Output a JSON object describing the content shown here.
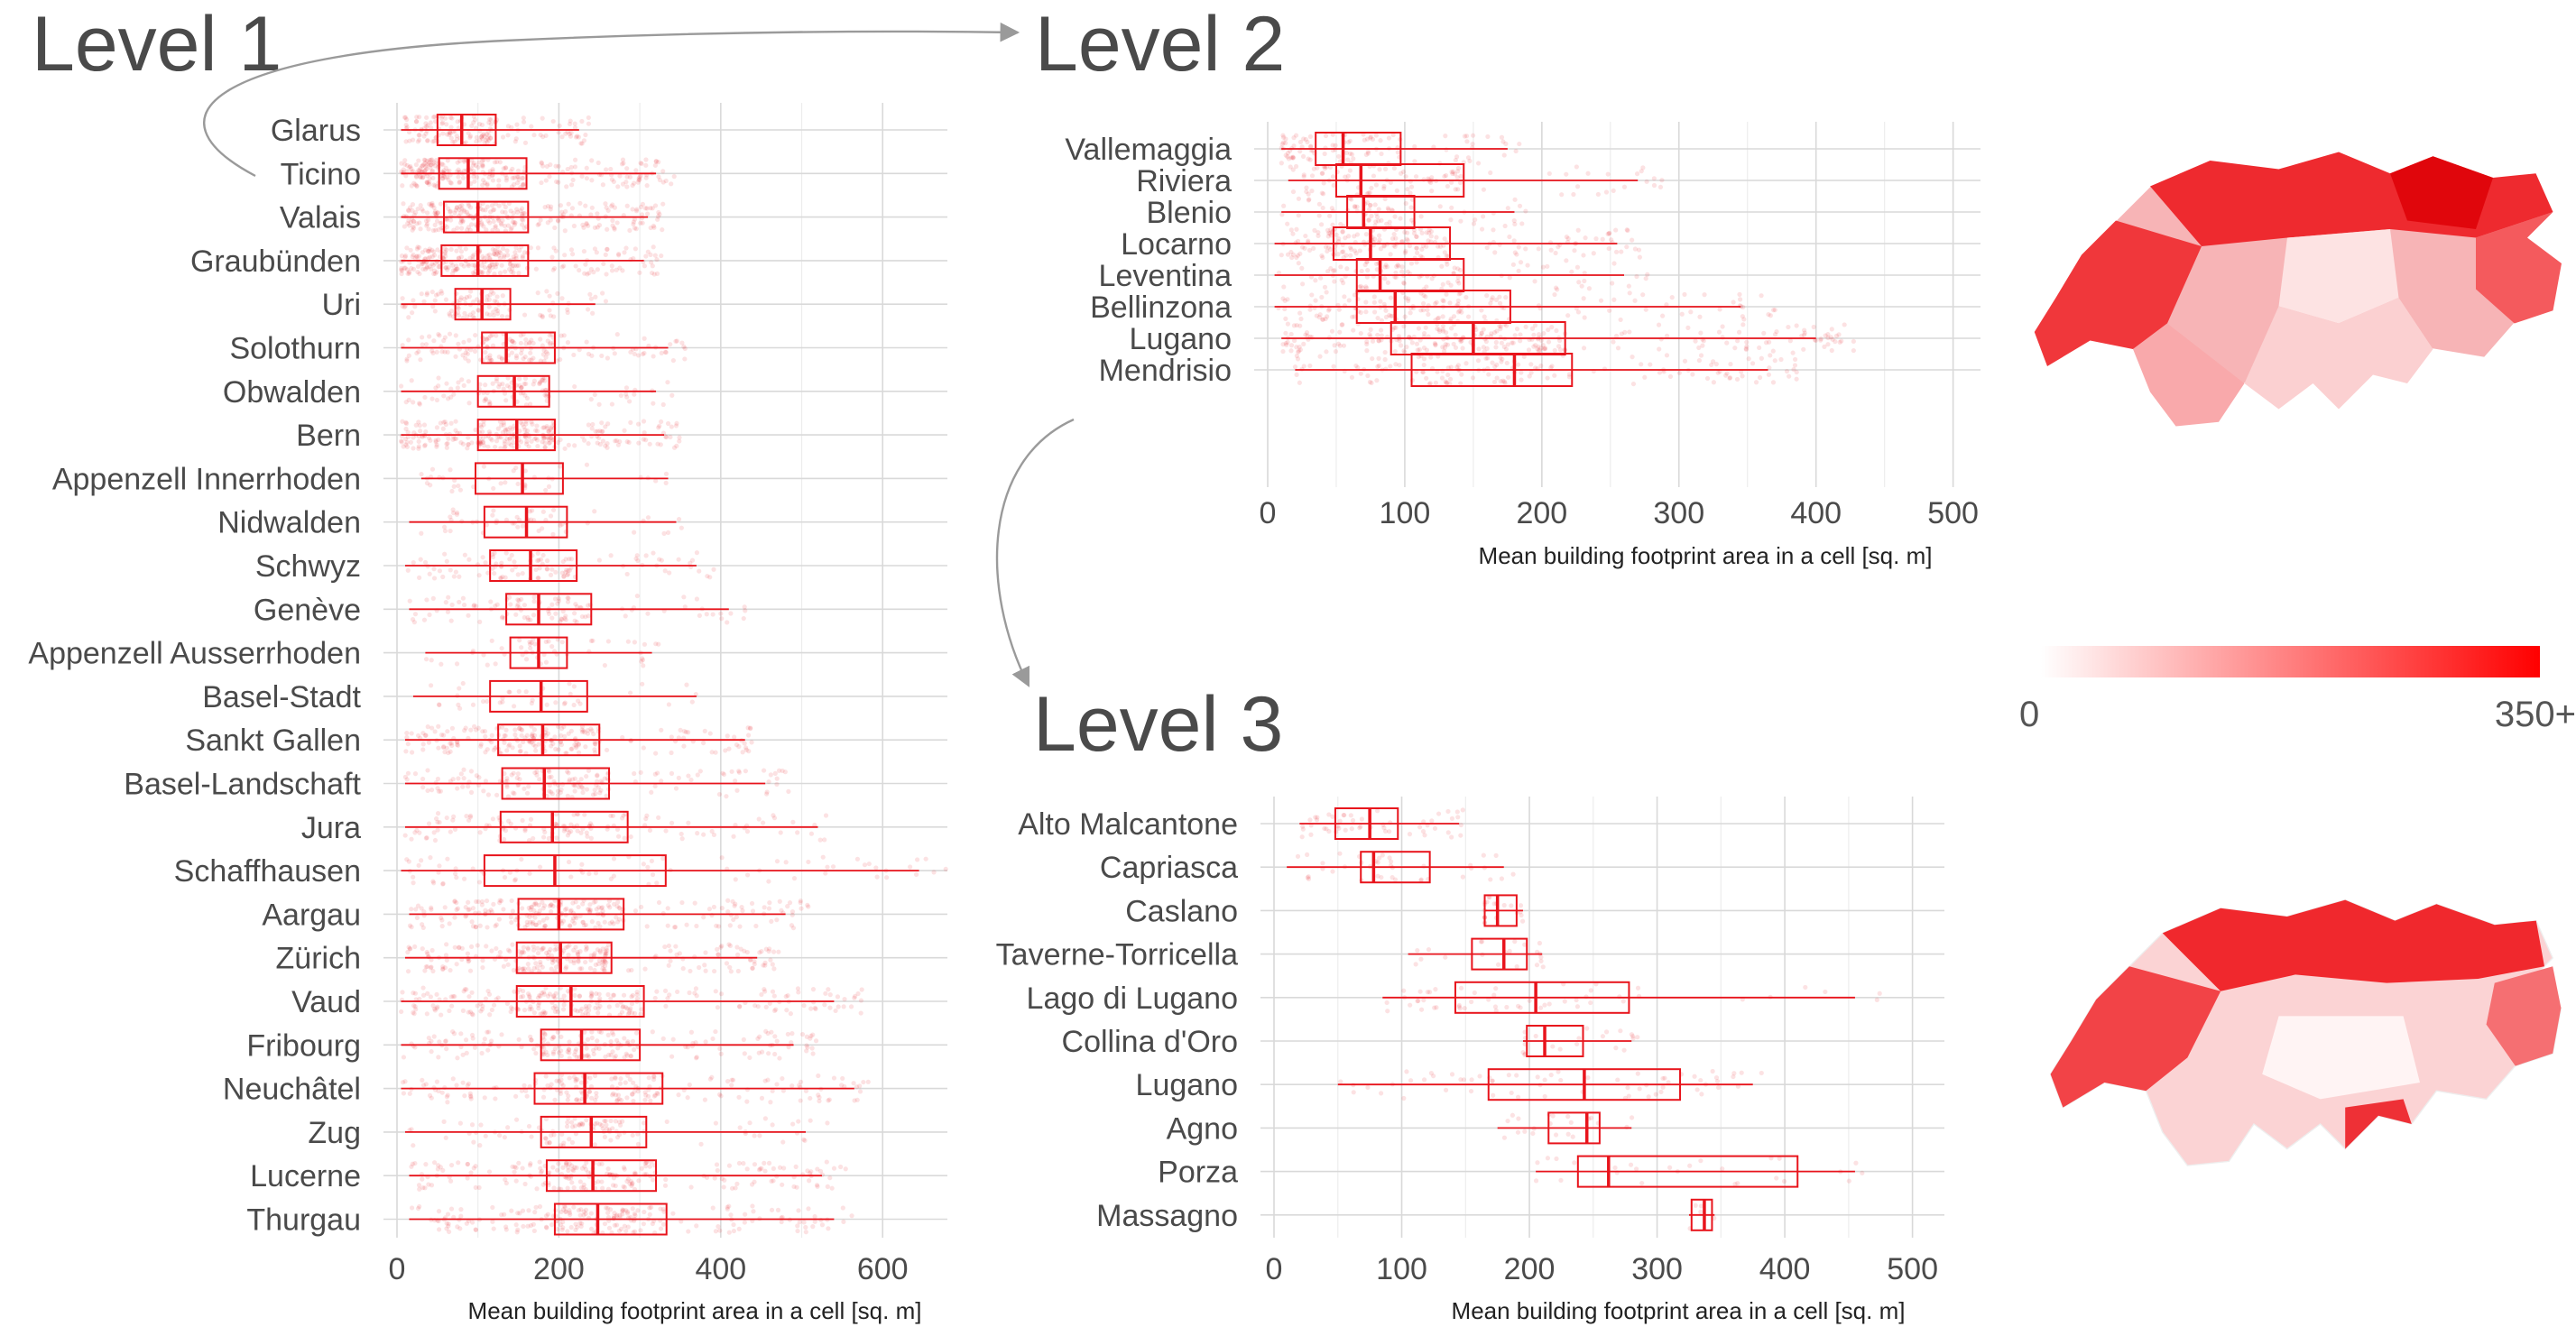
{
  "titles": {
    "level1": "Level 1",
    "level2": "Level 2",
    "level3": "Level 3"
  },
  "colors": {
    "accent": "#e8141c",
    "map_low": "#fde8e8",
    "map_high": "#ff0000",
    "grid": "#d9d9d9",
    "text": "#4a4a4a"
  },
  "chart_data": [
    {
      "id": "level1",
      "type": "box",
      "title": "Level 1",
      "xlabel": "Mean building footprint area in a cell [sq. m]",
      "xlim": [
        0,
        680
      ],
      "xticks": [
        0,
        200,
        400,
        600
      ],
      "categories": [
        "Glarus",
        "Ticino",
        "Valais",
        "Graubünden",
        "Uri",
        "Solothurn",
        "Obwalden",
        "Bern",
        "Appenzell Innerrhoden",
        "Nidwalden",
        "Schwyz",
        "Genève",
        "Appenzell Ausserrhoden",
        "Basel-Stadt",
        "Sankt Gallen",
        "Basel-Landschaft",
        "Jura",
        "Schaffhausen",
        "Aargau",
        "Zürich",
        "Vaud",
        "Fribourg",
        "Neuchâtel",
        "Zug",
        "Lucerne",
        "Thurgau"
      ],
      "boxes": [
        [
          5,
          50,
          80,
          122,
          225
        ],
        [
          5,
          52,
          88,
          160,
          320
        ],
        [
          5,
          58,
          100,
          162,
          310
        ],
        [
          5,
          55,
          100,
          162,
          305
        ],
        [
          5,
          72,
          105,
          140,
          245
        ],
        [
          5,
          105,
          135,
          195,
          335
        ],
        [
          5,
          100,
          145,
          188,
          320
        ],
        [
          5,
          100,
          148,
          195,
          330
        ],
        [
          30,
          97,
          155,
          205,
          335
        ],
        [
          15,
          108,
          160,
          210,
          345
        ],
        [
          10,
          115,
          165,
          222,
          370
        ],
        [
          15,
          135,
          175,
          240,
          410
        ],
        [
          35,
          140,
          175,
          210,
          315
        ],
        [
          20,
          115,
          178,
          235,
          370
        ],
        [
          10,
          125,
          180,
          250,
          430
        ],
        [
          10,
          130,
          182,
          262,
          455
        ],
        [
          10,
          128,
          192,
          285,
          520
        ],
        [
          5,
          108,
          195,
          332,
          645
        ],
        [
          15,
          150,
          200,
          280,
          480
        ],
        [
          10,
          148,
          202,
          265,
          445
        ],
        [
          5,
          148,
          215,
          305,
          540
        ],
        [
          5,
          178,
          228,
          300,
          490
        ],
        [
          5,
          170,
          232,
          328,
          565
        ],
        [
          10,
          178,
          240,
          308,
          505
        ],
        [
          15,
          185,
          242,
          320,
          525
        ],
        [
          15,
          195,
          248,
          333,
          540
        ]
      ],
      "point_density": [
        0.6,
        1.0,
        1.0,
        1.0,
        0.4,
        0.6,
        0.4,
        1.0,
        0.15,
        0.2,
        0.4,
        0.4,
        0.2,
        0.15,
        0.8,
        0.6,
        0.5,
        0.3,
        0.9,
        0.9,
        0.9,
        0.7,
        0.7,
        0.4,
        0.8,
        0.8
      ]
    },
    {
      "id": "level2",
      "type": "box",
      "title": "Level 2",
      "xlabel": "Mean building footprint area in a cell [sq. m]",
      "xlim": [
        0,
        520
      ],
      "xticks": [
        0,
        100,
        200,
        300,
        400,
        500
      ],
      "categories": [
        "Vallemaggia",
        "Riviera",
        "Blenio",
        "Locarno",
        "Leventina",
        "Bellinzona",
        "Lugano",
        "Mendrisio"
      ],
      "boxes": [
        [
          10,
          35,
          55,
          97,
          175
        ],
        [
          15,
          50,
          68,
          143,
          270
        ],
        [
          10,
          58,
          70,
          107,
          180
        ],
        [
          5,
          48,
          75,
          133,
          255
        ],
        [
          5,
          65,
          82,
          143,
          260
        ],
        [
          5,
          65,
          93,
          177,
          345
        ],
        [
          10,
          90,
          150,
          217,
          400
        ],
        [
          20,
          105,
          180,
          222,
          365
        ]
      ],
      "point_density": [
        0.4,
        0.4,
        0.3,
        0.7,
        0.4,
        0.6,
        1.0,
        0.6
      ]
    },
    {
      "id": "level3",
      "type": "box",
      "title": "Level 3",
      "xlabel": "Mean building footprint area in a cell [sq. m]",
      "xlim": [
        0,
        525
      ],
      "xticks": [
        0,
        100,
        200,
        300,
        400,
        500
      ],
      "categories": [
        "Alto Malcantone",
        "Capriasca",
        "Caslano",
        "Taverne-Torricella",
        "Lago di Lugano",
        "Collina d'Oro",
        "Lugano",
        "Agno",
        "Porza",
        "Massagno"
      ],
      "boxes": [
        [
          20,
          48,
          75,
          97,
          145
        ],
        [
          10,
          68,
          78,
          122,
          180
        ],
        [
          165,
          165,
          175,
          190,
          195
        ],
        [
          105,
          155,
          180,
          198,
          210
        ],
        [
          85,
          142,
          205,
          278,
          455
        ],
        [
          195,
          198,
          212,
          242,
          280
        ],
        [
          50,
          168,
          243,
          318,
          375
        ],
        [
          175,
          215,
          245,
          255,
          280
        ],
        [
          205,
          238,
          262,
          410,
          455
        ],
        [
          325,
          327,
          337,
          343,
          345
        ]
      ],
      "point_density": [
        0.2,
        0.15,
        0.08,
        0.08,
        0.2,
        0.08,
        0.25,
        0.08,
        0.1,
        0.02
      ]
    }
  ],
  "legend": {
    "min_label": "0",
    "max_label": "350+"
  }
}
